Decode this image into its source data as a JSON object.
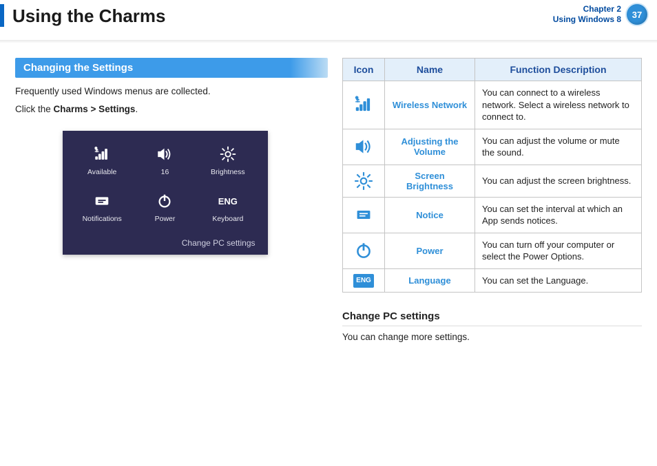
{
  "header": {
    "title": "Using the Charms",
    "chapter_line1": "Chapter 2",
    "chapter_line2": "Using Windows 8",
    "page_number": "37"
  },
  "section": {
    "heading": "Changing the Settings",
    "intro_line1": "Frequently used Windows menus are collected.",
    "intro_line2_prefix": "Click the ",
    "intro_line2_bold": "Charms > Settings",
    "intro_line2_suffix": "."
  },
  "panel": {
    "tiles": [
      {
        "id": "available",
        "label": "Available",
        "icon": "wifi"
      },
      {
        "id": "volume",
        "label": "16",
        "icon": "speaker"
      },
      {
        "id": "brightness",
        "label": "Brightness",
        "icon": "sun"
      },
      {
        "id": "notifications",
        "label": "Notifications",
        "icon": "notice"
      },
      {
        "id": "power",
        "label": "Power",
        "icon": "power"
      },
      {
        "id": "keyboard",
        "label": "Keyboard",
        "icon": "eng",
        "eng": "ENG"
      }
    ],
    "footer": "Change PC settings"
  },
  "table": {
    "headers": {
      "icon": "Icon",
      "name": "Name",
      "desc": "Function Description"
    },
    "rows": [
      {
        "icon": "wifi",
        "name": "Wireless Network",
        "desc": "You can connect to a wireless network. Select a wireless network to connect to."
      },
      {
        "icon": "speaker",
        "name": "Adjusting the Volume",
        "desc": "You can adjust the volume or mute the sound."
      },
      {
        "icon": "sun",
        "name": "Screen Brightness",
        "desc": "You can adjust the screen brightness."
      },
      {
        "icon": "notice",
        "name": "Notice",
        "desc": "You can set the interval at which an App sends notices."
      },
      {
        "icon": "power",
        "name": "Power",
        "desc": "You can turn off your computer or select the Power Options."
      },
      {
        "icon": "eng",
        "eng": "ENG",
        "name": "Language",
        "desc": "You can set the Language."
      }
    ]
  },
  "subsection": {
    "heading": "Change PC settings",
    "text": "You can change more settings."
  },
  "colors": {
    "accent": "#2f8fd8",
    "panel_bg": "#2d2b52",
    "table_header_bg": "#e3effa",
    "table_border": "#c4c4c4"
  }
}
